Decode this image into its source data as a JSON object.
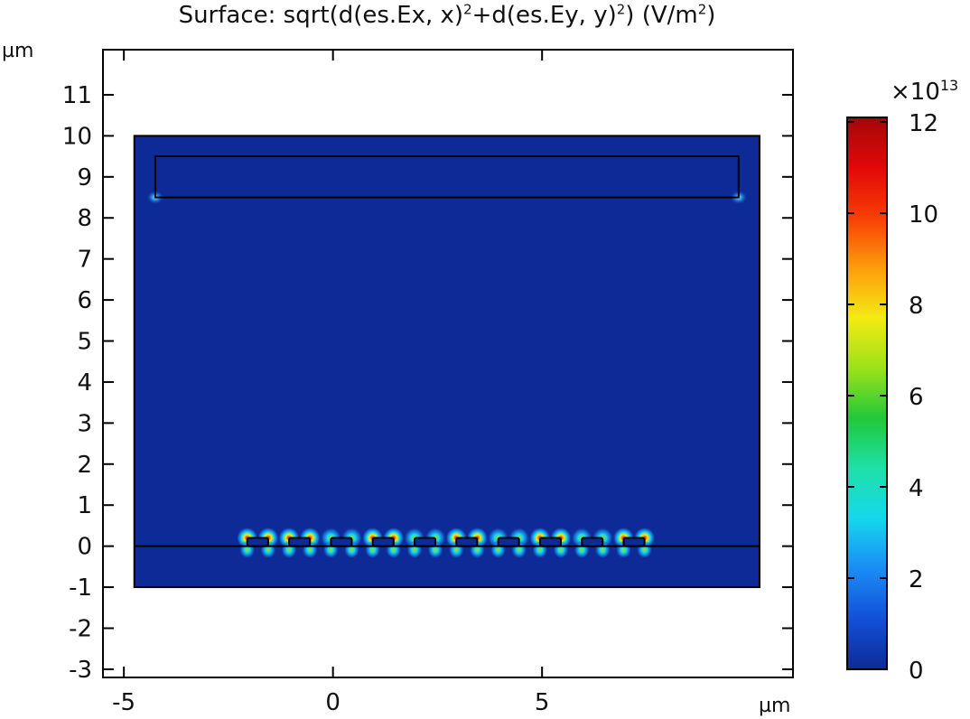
{
  "title": {
    "prefix": "Surface: sqrt(d(es.Ex, x)",
    "exp1": "2",
    "mid": "+d(es.Ey, y)",
    "exp2": "2",
    "end": ") (V/m",
    "exp3": "2",
    "close": ")"
  },
  "chart_data": {
    "type": "heatmap",
    "x_unit_label": "µm",
    "y_unit_label": "µm",
    "xlim": [
      -5.5,
      11
    ],
    "ylim": [
      -3.2,
      12.1
    ],
    "x_ticks": [
      -5,
      0,
      5
    ],
    "x_tick_labels": [
      "-5",
      "0",
      "5"
    ],
    "y_ticks": [
      -3,
      -2,
      -1,
      0,
      1,
      2,
      3,
      4,
      5,
      6,
      7,
      8,
      9,
      10,
      11
    ],
    "y_tick_labels": [
      "-3",
      "-2",
      "-1",
      "0",
      "1",
      "2",
      "3",
      "4",
      "5",
      "6",
      "7",
      "8",
      "9",
      "10",
      "11"
    ],
    "domain_rect": {
      "x": [
        -4.75,
        10.2
      ],
      "y": [
        -1,
        10
      ]
    },
    "top_electrode": {
      "x": [
        -4.25,
        9.7
      ],
      "y": [
        8.5,
        9.5
      ]
    },
    "interface_line_y": 0,
    "finger_electrodes": [
      {
        "x": [
          -2.05,
          -1.55
        ],
        "y": [
          0,
          0.2
        ]
      },
      {
        "x": [
          -1.05,
          -0.55
        ],
        "y": [
          0,
          0.2
        ]
      },
      {
        "x": [
          -0.05,
          0.45
        ],
        "y": [
          0,
          0.2
        ]
      },
      {
        "x": [
          0.95,
          1.45
        ],
        "y": [
          0,
          0.2
        ]
      },
      {
        "x": [
          1.95,
          2.45
        ],
        "y": [
          0,
          0.2
        ]
      },
      {
        "x": [
          2.95,
          3.45
        ],
        "y": [
          0,
          0.2
        ]
      },
      {
        "x": [
          3.95,
          4.45
        ],
        "y": [
          0,
          0.2
        ]
      },
      {
        "x": [
          4.95,
          5.45
        ],
        "y": [
          0,
          0.2
        ]
      },
      {
        "x": [
          5.95,
          6.45
        ],
        "y": [
          0,
          0.2
        ]
      },
      {
        "x": [
          6.95,
          7.45
        ],
        "y": [
          0,
          0.2
        ]
      }
    ],
    "background_value": 0.3,
    "colorbar": {
      "multiplier_label": "×10",
      "multiplier_exp": "13",
      "range": [
        0,
        12.1
      ],
      "ticks": [
        0,
        2,
        4,
        6,
        8,
        10,
        12
      ],
      "tick_labels": [
        "0",
        "2",
        "4",
        "6",
        "8",
        "10",
        "12"
      ],
      "colormap": [
        "#0d2a96",
        "#1250d8",
        "#1a8cf5",
        "#15d7ec",
        "#1fe0a8",
        "#20c83a",
        "#9be21a",
        "#f4ea12",
        "#fd9d0b",
        "#f83e06",
        "#e10808",
        "#a30808"
      ]
    }
  }
}
